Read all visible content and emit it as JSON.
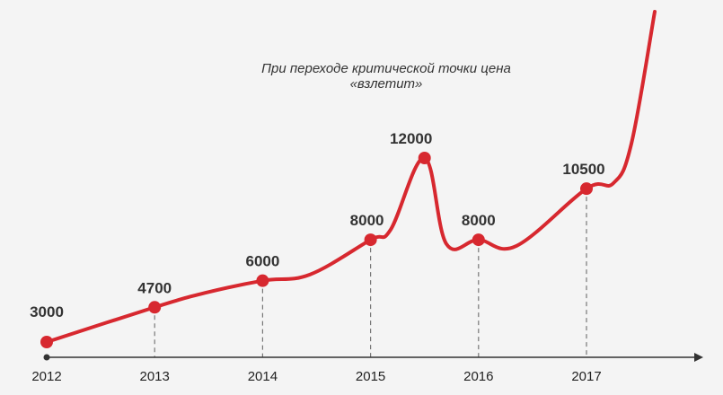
{
  "chart_data": {
    "type": "line",
    "title": "",
    "annotation": "При переходе критической точки цена «взлетит»",
    "xlabel": "",
    "ylabel": "",
    "x": [
      2012,
      2013,
      2014,
      2015,
      2015.5,
      2016,
      2017
    ],
    "x_tick_labels": [
      "2012",
      "2013",
      "2014",
      "2015",
      "2016",
      "2017"
    ],
    "series": [
      {
        "values": [
          3000,
          4700,
          6000,
          8000,
          12000,
          8000,
          10500
        ],
        "labels": [
          "3000",
          "4700",
          "6000",
          "8000",
          "12000",
          "8000",
          "10500"
        ]
      }
    ],
    "trend_after_last_point": "sharp rise off the top of the chart",
    "grid": false,
    "legend": "none",
    "colors": {
      "line": "#d7282f",
      "axis": "#333333",
      "dropline": "#777777"
    }
  }
}
